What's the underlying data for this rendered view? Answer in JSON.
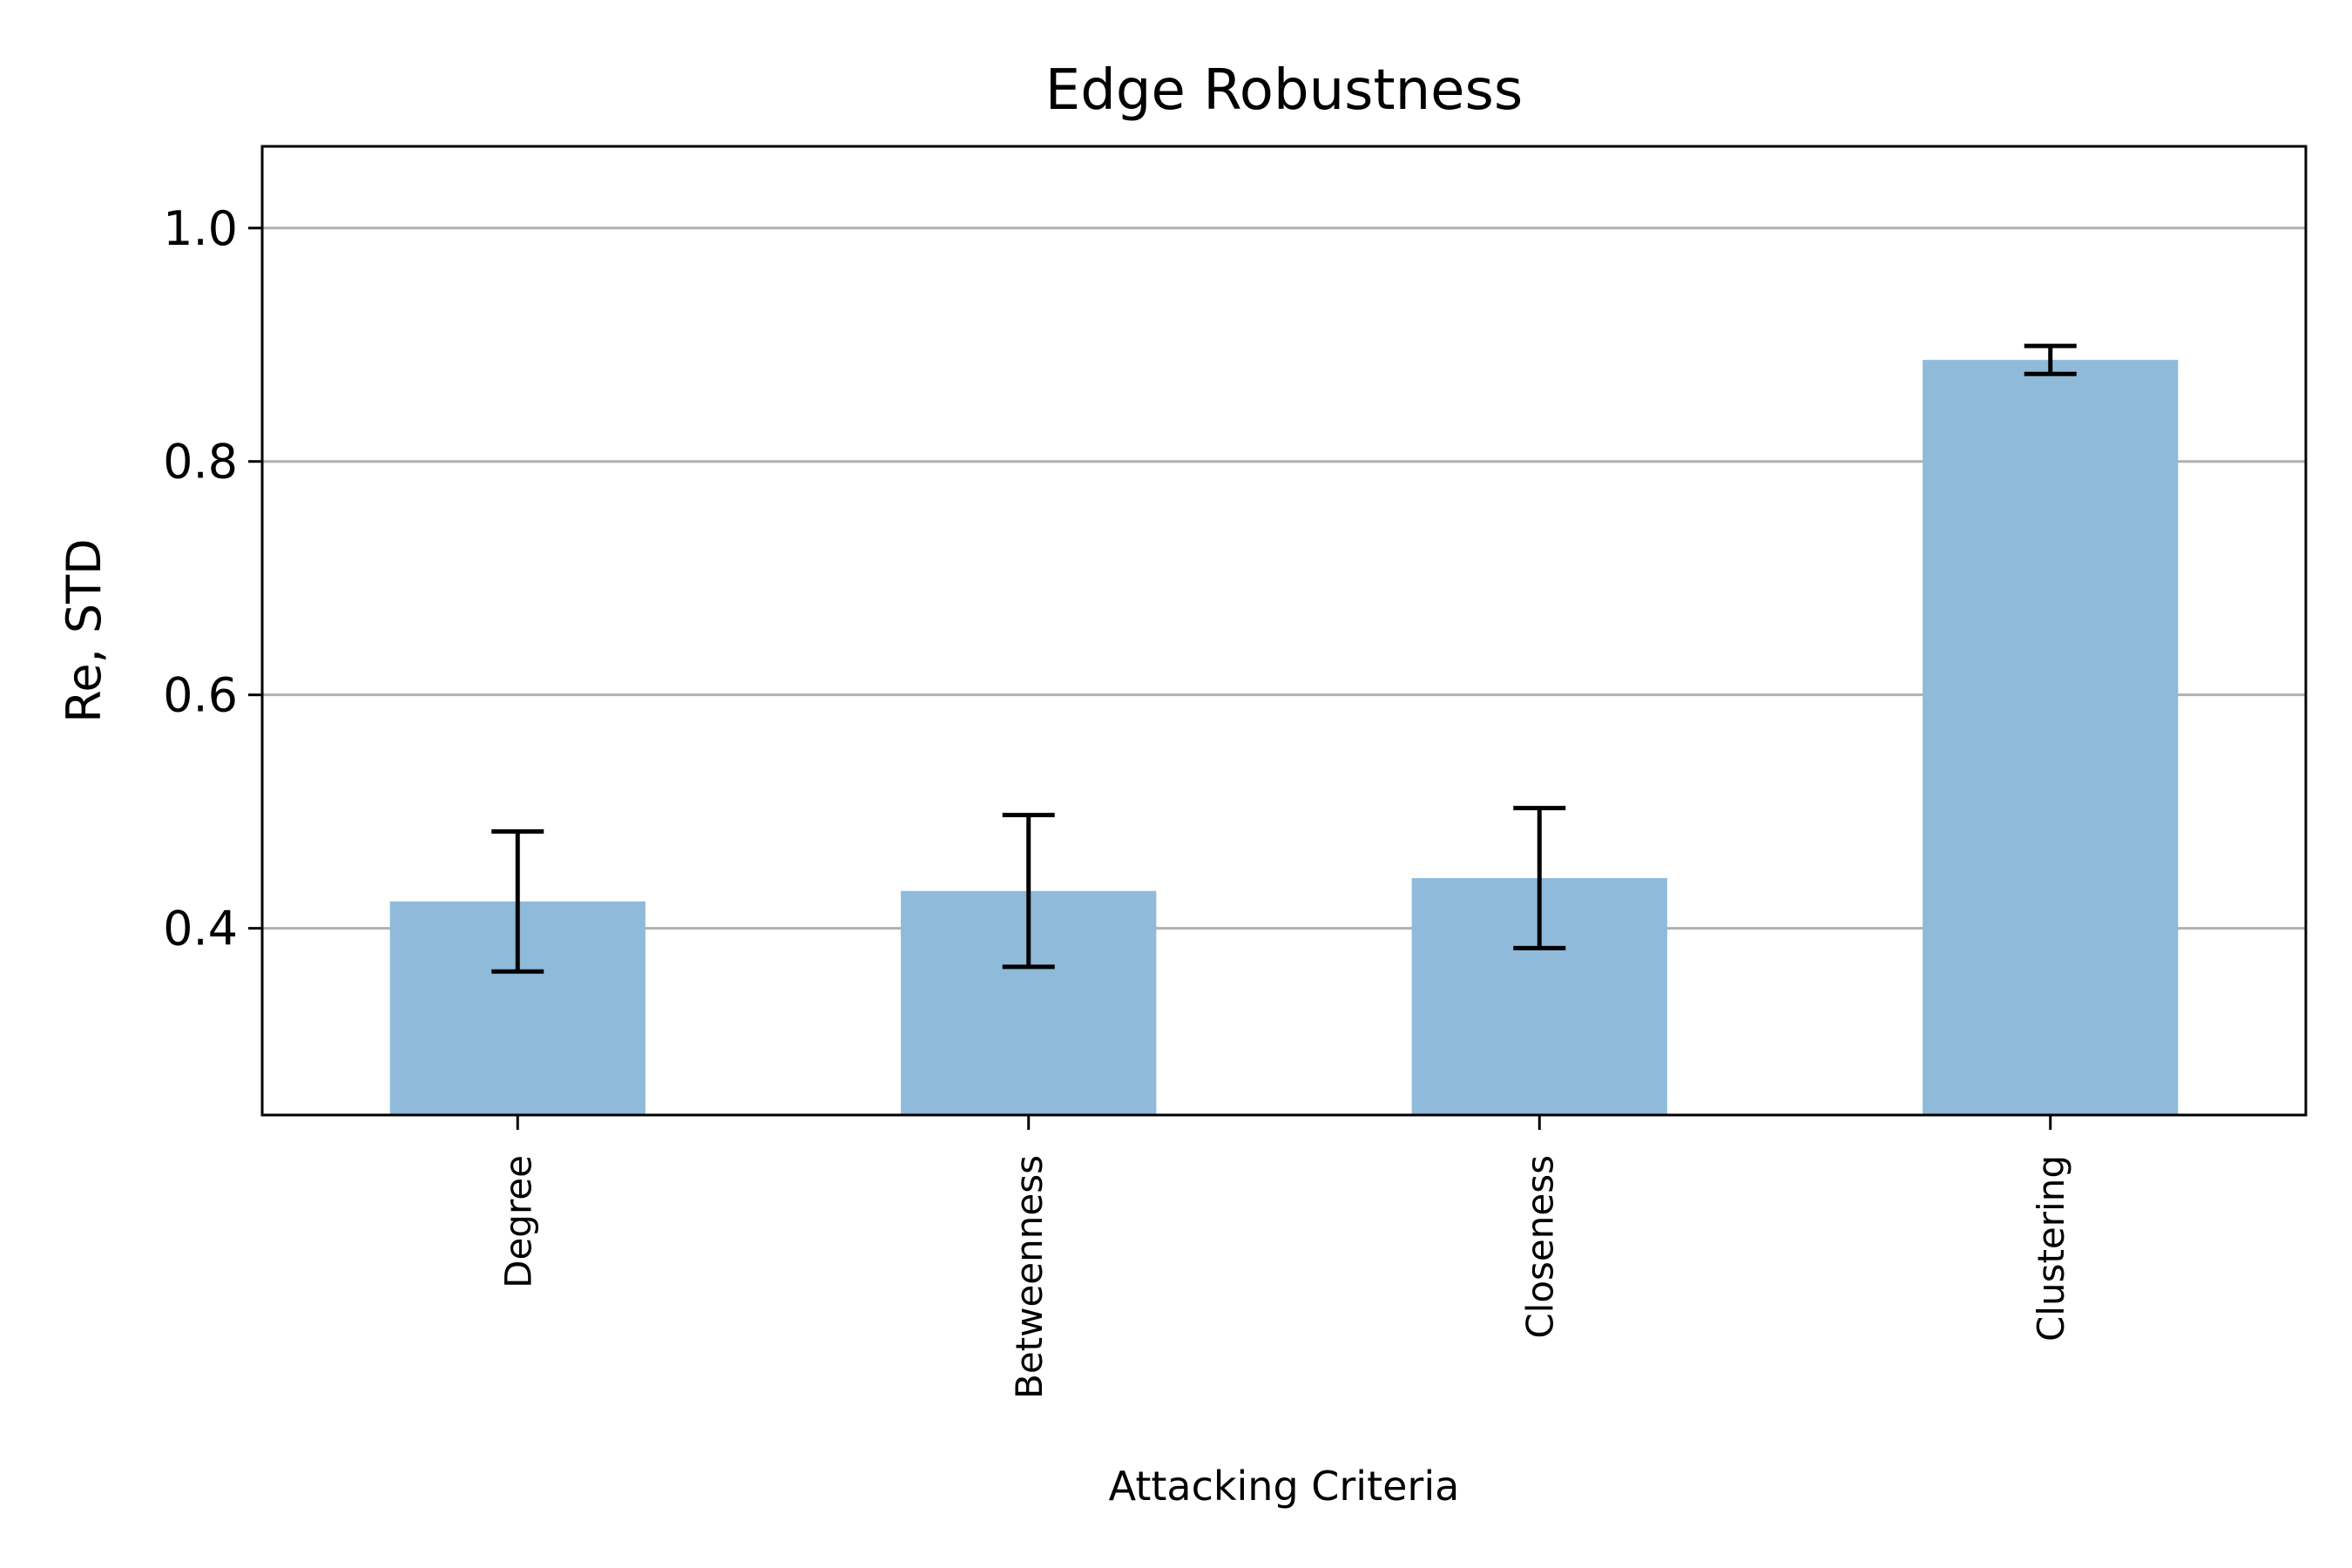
{
  "chart_data": {
    "type": "bar",
    "title": "Edge Robustness",
    "xlabel": "Attacking Criteria",
    "ylabel": "Re, STD",
    "categories": [
      "Degree",
      "Betweenness",
      "Closeness",
      "Clustering"
    ],
    "values": [
      0.423,
      0.432,
      0.443,
      0.887
    ],
    "errors": [
      0.06,
      0.065,
      0.06,
      0.012
    ],
    "ylim": [
      0.24,
      1.07
    ],
    "yticks": [
      0.4,
      0.6,
      0.8,
      1.0
    ],
    "ytick_labels": [
      "0.4",
      "0.6",
      "0.8",
      "1.0"
    ],
    "grid": "y",
    "legend": "none",
    "bar_color": "#8fbad9",
    "error_color": "#000000",
    "grid_color": "#b0b0b0"
  }
}
